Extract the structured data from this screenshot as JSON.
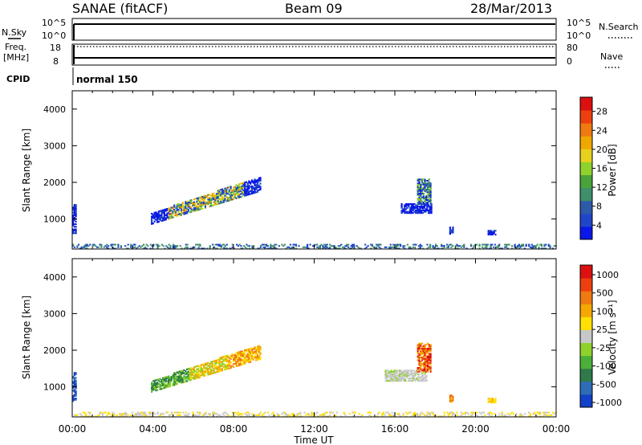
{
  "header": {
    "title": "SANAE (fitACF)",
    "beam": "Beam 09",
    "date": "28/Mar/2013"
  },
  "strips": {
    "nsky_label": "N.Sky",
    "nsky_ticks": [
      "10^5",
      "10^0"
    ],
    "nsearch_label": "N.Search",
    "nsearch_ticks": [
      "10^5",
      "10^0"
    ],
    "freq_label_1": "Freq.",
    "freq_label_2": "[MHz]",
    "freq_ticks": [
      "18",
      "8"
    ],
    "nave_label": "Nave",
    "nave_ticks": [
      "80",
      "0"
    ],
    "cpid_label": "CPID",
    "cpid_value": "normal 150"
  },
  "chart_data": [
    {
      "type": "heatmap",
      "name": "power",
      "ylabel": "Slant Range [km]",
      "yticks": [
        1000,
        2000,
        3000,
        4000
      ],
      "ylim": [
        180,
        4500
      ],
      "xlim": [
        0,
        24
      ],
      "colorbar": {
        "label": "Power [dB]",
        "ticks": [
          "4",
          "8",
          "12",
          "16",
          "20",
          "24",
          "28"
        ],
        "colors": [
          "#0a17e8",
          "#1f46c9",
          "#2f5aa8",
          "#3f8f6a",
          "#4aa33a",
          "#8fd22c",
          "#e6d21e",
          "#f0a800",
          "#ef7a10",
          "#ee3f10",
          "#dd1010"
        ]
      },
      "regions": [
        {
          "t0": 3.9,
          "t1": 9.3,
          "r0": 850,
          "r1": 1150,
          "r2": 1750,
          "r3": 2150,
          "level": "weak-strong"
        },
        {
          "t0": 0.0,
          "t1": 0.2,
          "r0": 600,
          "r1": 1400,
          "level": "weak"
        },
        {
          "t0": 16.3,
          "t1": 17.8,
          "r0": 1150,
          "r1": 1400,
          "level": "weak"
        },
        {
          "t0": 17.1,
          "t1": 17.8,
          "r0": 1400,
          "r1": 2100,
          "level": "mixed"
        },
        {
          "t0": 18.7,
          "t1": 18.9,
          "r0": 580,
          "r1": 780,
          "level": "weak"
        },
        {
          "t0": 20.6,
          "t1": 21.0,
          "r0": 560,
          "r1": 700,
          "level": "weak"
        },
        {
          "t0": 0.0,
          "t1": 24.0,
          "r0": 180,
          "r1": 320,
          "level": "ground"
        }
      ]
    },
    {
      "type": "heatmap",
      "name": "velocity",
      "xlabel": "Time UT",
      "ylabel": "Slant Range [km]",
      "xticks": [
        "00:00",
        "04:00",
        "08:00",
        "12:00",
        "16:00",
        "20:00",
        "00:00"
      ],
      "yticks": [
        1000,
        2000,
        3000,
        4000
      ],
      "ylim": [
        180,
        4500
      ],
      "xlim": [
        0,
        24
      ],
      "colorbar": {
        "label": "Velocity [m s⁻¹]",
        "ticks": [
          "1000",
          "500",
          "100",
          "25",
          "-25",
          "-100",
          "-500",
          "-1000"
        ],
        "colors": [
          "#1240c8",
          "#2d6db8",
          "#2e7a4a",
          "#4caf3a",
          "#8fd22c",
          "#c8c8c8",
          "#ffe000",
          "#f5a800",
          "#ef7a10",
          "#ee3f10",
          "#dd1010"
        ]
      },
      "regions": [
        {
          "t0": 3.9,
          "t1": 9.3,
          "r0": 850,
          "r1": 1150,
          "r2": 1750,
          "r3": 2150,
          "level": "green-orange"
        },
        {
          "t0": 0.0,
          "t1": 0.2,
          "r0": 600,
          "r1": 1400,
          "level": "blue"
        },
        {
          "t0": 15.5,
          "t1": 17.6,
          "r0": 1150,
          "r1": 1450,
          "level": "grey"
        },
        {
          "t0": 17.1,
          "t1": 17.8,
          "r0": 1400,
          "r1": 2200,
          "level": "orange-red"
        },
        {
          "t0": 18.7,
          "t1": 18.9,
          "r0": 580,
          "r1": 780,
          "level": "orange"
        },
        {
          "t0": 20.6,
          "t1": 21.0,
          "r0": 560,
          "r1": 700,
          "level": "yellow"
        },
        {
          "t0": 0.0,
          "t1": 24.0,
          "r0": 180,
          "r1": 320,
          "level": "ground"
        }
      ]
    }
  ]
}
